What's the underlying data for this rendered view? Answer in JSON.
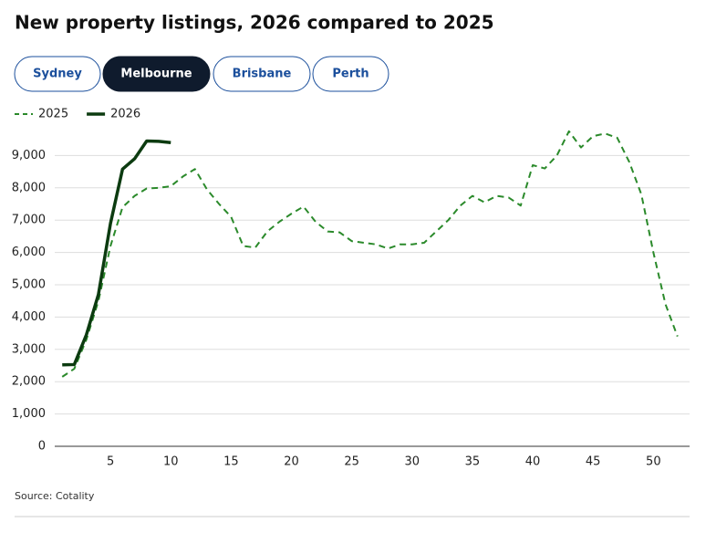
{
  "chart_data": {
    "type": "line",
    "title": "New property listings, 2026 compared to 2025",
    "tabs": [
      "Sydney",
      "Melbourne",
      "Brisbane",
      "Perth"
    ],
    "source": "Source: Cotality",
    "x": [
      1,
      2,
      3,
      4,
      5,
      6,
      7,
      8,
      9,
      10,
      11,
      12,
      13,
      14,
      15,
      16,
      17,
      18,
      19,
      20,
      21,
      22,
      23,
      24,
      25,
      26,
      27,
      28,
      29,
      30,
      31,
      32,
      33,
      34,
      35,
      36,
      37,
      38,
      39,
      40,
      41,
      42,
      43,
      44,
      45,
      46,
      47,
      48,
      49,
      50,
      51,
      52
    ],
    "series": [
      {
        "name": "2025",
        "color": "#2b8a2b",
        "dashed": true,
        "values": [
          2150,
          2400,
          3300,
          4500,
          6200,
          7400,
          7750,
          7980,
          8000,
          8050,
          8350,
          8580,
          7950,
          7500,
          7100,
          6200,
          6150,
          6650,
          6950,
          7200,
          7420,
          6950,
          6650,
          6620,
          6350,
          6300,
          6250,
          6120,
          6250,
          6250,
          6300,
          6650,
          7000,
          7450,
          7750,
          7550,
          7750,
          7700,
          7450,
          8700,
          8600,
          9000,
          9750,
          9250,
          9600,
          9680,
          9550,
          8800,
          7800,
          6000,
          4400,
          3400
        ]
      },
      {
        "name": "2026",
        "color": "#0c3b10",
        "dashed": false,
        "values": [
          2520,
          2530,
          3450,
          4700,
          6900,
          8580,
          8900,
          9450,
          9440,
          9400,
          null,
          null,
          null,
          null,
          null,
          null,
          null,
          null,
          null,
          null,
          null,
          null,
          null,
          null,
          null,
          null,
          null,
          null,
          null,
          null,
          null,
          null,
          null,
          null,
          null,
          null,
          null,
          null,
          null,
          null,
          null,
          null,
          null,
          null,
          null,
          null,
          null,
          null,
          null,
          null,
          null,
          null
        ]
      }
    ],
    "xlim": [
      0,
      53
    ],
    "xticks": [
      5,
      10,
      15,
      20,
      25,
      30,
      35,
      40,
      45,
      50
    ],
    "ylim": [
      0,
      10000
    ],
    "yticks": [
      0,
      {
        "value": 1000,
        "label": "1,000"
      },
      {
        "value": 2000,
        "label": "2,000"
      },
      {
        "value": 3000,
        "label": "3,000"
      },
      {
        "value": 4000,
        "label": "4,000"
      },
      {
        "value": 5000,
        "label": "5,000"
      },
      {
        "value": 6000,
        "label": "6,000"
      },
      {
        "value": 7000,
        "label": "7,000"
      },
      {
        "value": 8000,
        "label": "8,000"
      },
      {
        "value": 9000,
        "label": "9,000"
      }
    ],
    "grid": true
  }
}
